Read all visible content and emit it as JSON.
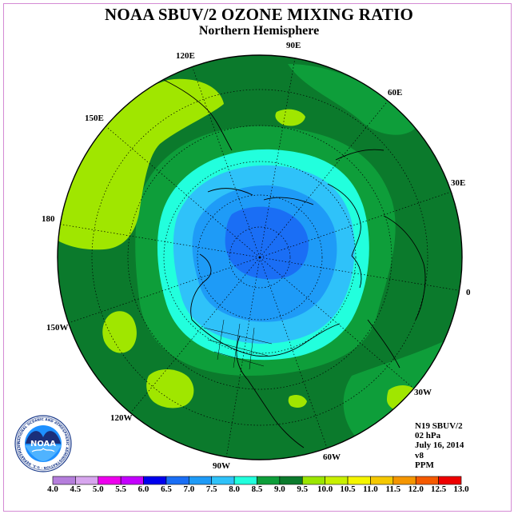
{
  "title": "NOAA SBUV/2 OZONE MIXING RATIO",
  "subtitle": "Northern Hemisphere",
  "longitude_labels": [
    "90E",
    "60E",
    "30E",
    "0",
    "30W",
    "60W",
    "90W",
    "120W",
    "150W",
    "180",
    "150E",
    "120E"
  ],
  "info": {
    "instrument": "N19 SBUV/2",
    "level": "02 hPa",
    "date": "July 16, 2014",
    "version": "v8",
    "units": "PPM"
  },
  "colorbar": {
    "ticks": [
      "4.0",
      "4.5",
      "5.0",
      "5.5",
      "6.0",
      "6.5",
      "7.0",
      "7.5",
      "8.0",
      "8.5",
      "9.0",
      "9.5",
      "10.0",
      "10.5",
      "11.0",
      "11.5",
      "12.0",
      "12.5",
      "13.0"
    ],
    "colors": [
      "#b57edc",
      "#d7a6ee",
      "#ee00ee",
      "#c400ff",
      "#0000ee",
      "#1a6ef5",
      "#1e9bf7",
      "#2fc2f9",
      "#22ffdd",
      "#0e9e3a",
      "#0b7a2c",
      "#9be600",
      "#c8f000",
      "#f5f500",
      "#f5c800",
      "#f59600",
      "#f55a00",
      "#ee0000",
      "#8b5a2b"
    ]
  },
  "logo": {
    "text": "NOAA",
    "ring_text": "NATIONAL OCEANIC AND ATMOSPHERIC ADMINISTRATION · U.S. DEPARTMENT OF COMMERCE"
  },
  "map_colors": {
    "ocean_disk": "#0b7a2c",
    "green_mid": "#0e9e3a",
    "lime": "#a0e600",
    "cyan": "#22ffdd",
    "blue_light": "#2fc2f9",
    "blue_mid": "#1e9bf7",
    "blue_dark": "#1a6ef5"
  }
}
